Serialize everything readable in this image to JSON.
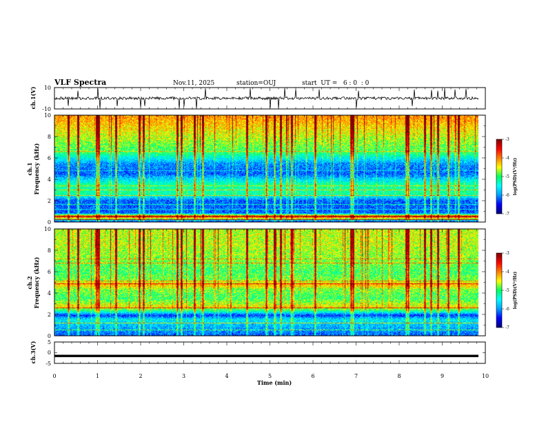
{
  "header": {
    "title": "VLF Spectra",
    "date": "Nov.11, 2025",
    "station": "station=OUJ",
    "start": "start  UT =   6 : 0  : 0"
  },
  "chart_data": [
    {
      "type": "line",
      "id": "ch1_waveform",
      "ylabel": "ch.1(V)",
      "ylim": [
        -10,
        10
      ],
      "yticks": [
        "10",
        "-10"
      ],
      "xlim": [
        0,
        10
      ],
      "description_of_trace": "noisy waveform near 0 V with spikes",
      "baseline": 0,
      "spikes_x": [
        0.32,
        0.55,
        1.0,
        1.05,
        1.45,
        2.0,
        2.1,
        2.9,
        3.0,
        3.3,
        3.5,
        4.55,
        5.0,
        5.2,
        5.35,
        5.6,
        6.15,
        7.0,
        7.05,
        8.3,
        8.35,
        8.75,
        8.9,
        9.05,
        9.3,
        9.55
      ]
    },
    {
      "type": "heatmap",
      "id": "ch1_spectrogram",
      "ylabel_line1": "ch.1",
      "ylabel_line2": "Frequency (kHz)",
      "ylim": [
        0,
        10
      ],
      "yticks": [
        "0",
        "2",
        "4",
        "6",
        "8",
        "10"
      ],
      "xlim": [
        0,
        10
      ],
      "colorbar": {
        "label": "log(PSD)(V²/Hz)",
        "range": [
          -7,
          -3
        ],
        "ticks": [
          "-3",
          "-4",
          "-5",
          "-6",
          "-7"
        ]
      }
    },
    {
      "type": "heatmap",
      "id": "ch2_spectrogram",
      "ylabel_line1": "ch.2",
      "ylabel_line2": "Frequency (kHz)",
      "ylim": [
        0,
        10
      ],
      "yticks": [
        "0",
        "2",
        "4",
        "6",
        "8",
        "10"
      ],
      "xlim": [
        0,
        10
      ],
      "colorbar": {
        "label": "log(PSD)(V²/Hz)",
        "range": [
          -7,
          -3
        ],
        "ticks": [
          "-3",
          "-4",
          "-5",
          "-6",
          "-7"
        ]
      }
    },
    {
      "type": "line",
      "id": "ch3_waveform",
      "ylabel": "ch.3(V)",
      "ylim": [
        -5,
        5
      ],
      "yticks": [
        "5",
        "0",
        "-5"
      ],
      "xlim": [
        0,
        10
      ],
      "baseline": -1.5
    }
  ],
  "xaxis": {
    "label": "Time (min)",
    "ticks": [
      "0",
      "1",
      "2",
      "3",
      "4",
      "5",
      "6",
      "7",
      "8",
      "9",
      "10"
    ]
  },
  "colors": {
    "colormap": [
      "#000080",
      "#0000ff",
      "#00a0ff",
      "#00ffff",
      "#00ff60",
      "#ffff00",
      "#ff8000",
      "#ff0000",
      "#800000"
    ]
  }
}
